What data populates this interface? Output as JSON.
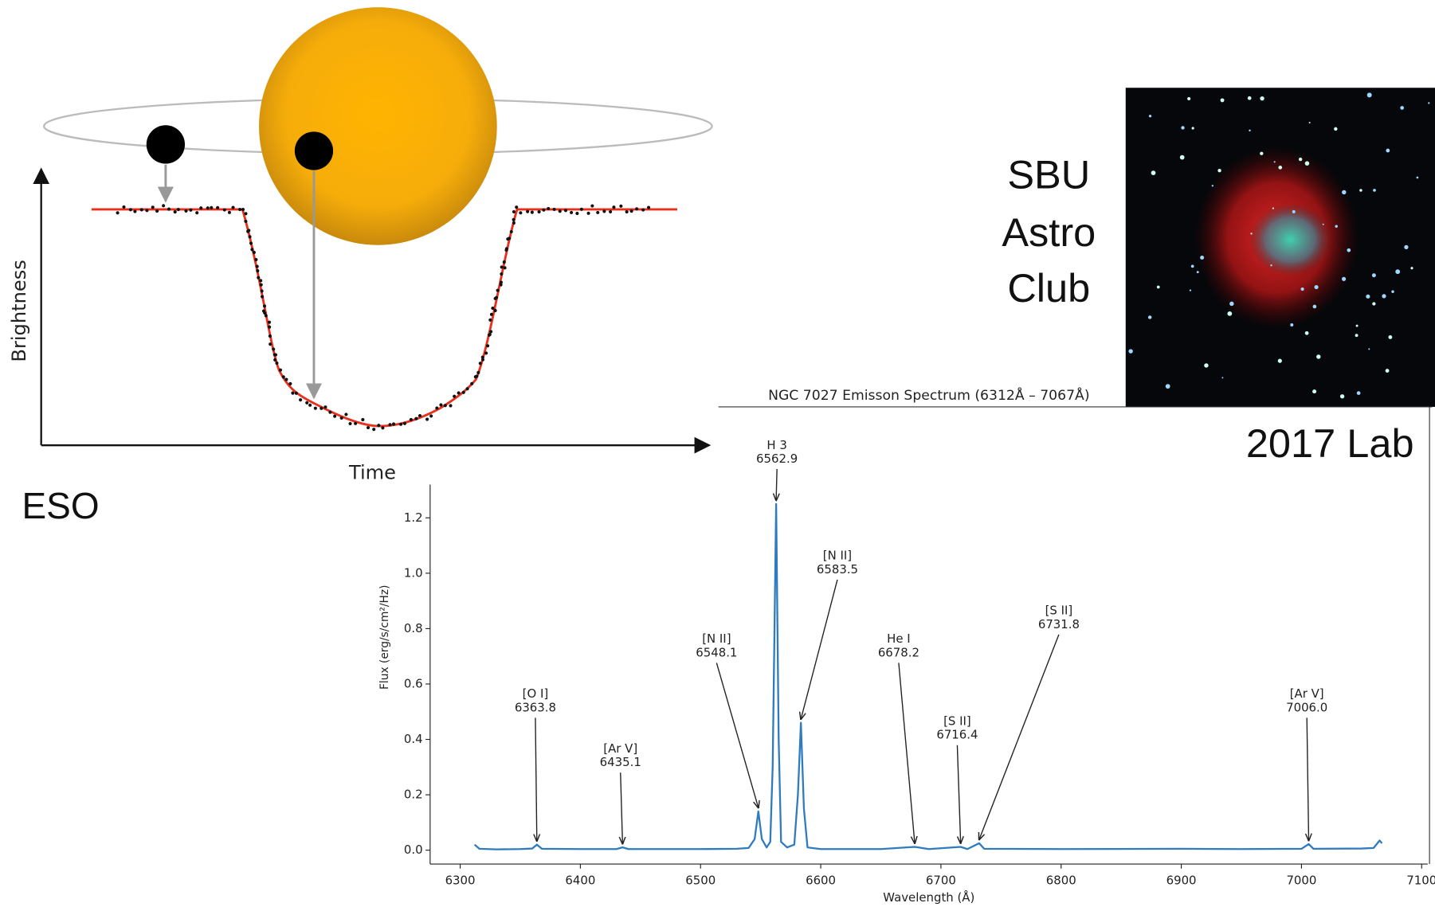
{
  "texts": {
    "source": "ESO",
    "club": [
      "SBU",
      "Astro",
      "Club"
    ],
    "year": "2017 Lab"
  },
  "chart_data": [
    {
      "type": "schematic",
      "xlabel": "Time",
      "ylabel": "Brightness"
    },
    {
      "type": "line",
      "title": "NGC 7027 Emisson Spectrum (6312Å – 7067Å)",
      "xlabel": "Wavelength (Å)",
      "ylabel": "Flux (erg/s/cm²/Hz)",
      "color": "#2f7bbf",
      "xlim": [
        6275,
        7105
      ],
      "xticks": [
        6300,
        6400,
        6500,
        6600,
        6700,
        6800,
        6900,
        7000,
        7100
      ],
      "ylim": [
        -0.05,
        1.32
      ],
      "yticks": [
        {
          "value": 0,
          "label": "0.0"
        },
        0.2,
        0.4,
        0.6,
        0.8,
        {
          "value": 1,
          "label": "1.0"
        },
        1.2
      ],
      "x": [
        6312,
        6316,
        6330,
        6350,
        6360,
        6363.8,
        6368,
        6400,
        6430,
        6435.1,
        6440,
        6500,
        6530,
        6540,
        6545,
        6548.1,
        6551,
        6555,
        6558,
        6560,
        6562.9,
        6565,
        6567,
        6572,
        6578,
        6581,
        6583.5,
        6586,
        6589,
        6600,
        6650,
        6678.2,
        6690,
        6716.4,
        6722,
        6731.8,
        6736,
        6800,
        6900,
        6950,
        7000,
        7006,
        7010,
        7050,
        7060,
        7065,
        7067
      ],
      "values": [
        0.02,
        0.005,
        0.003,
        0.004,
        0.006,
        0.02,
        0.005,
        0.004,
        0.004,
        0.01,
        0.004,
        0.004,
        0.005,
        0.008,
        0.04,
        0.14,
        0.04,
        0.01,
        0.03,
        0.3,
        1.25,
        0.4,
        0.03,
        0.01,
        0.02,
        0.2,
        0.46,
        0.15,
        0.01,
        0.004,
        0.004,
        0.012,
        0.004,
        0.012,
        0.004,
        0.025,
        0.005,
        0.004,
        0.005,
        0.004,
        0.005,
        0.022,
        0.005,
        0.006,
        0.008,
        0.035,
        0.025
      ],
      "annotations": [
        {
          "name": "[O I]",
          "value": 6363.8
        },
        {
          "name": "[Ar V]",
          "value": 6435.1
        },
        {
          "name": "[N II]",
          "value": 6548.1
        },
        {
          "name": "H 3",
          "value": 6562.9
        },
        {
          "name": "[N II]",
          "value": 6583.5
        },
        {
          "name": "He I",
          "value": 6678.2
        },
        {
          "name": "[S II]",
          "value": 6716.4
        },
        {
          "name": "[S II]",
          "value": 6731.8
        },
        {
          "name": "[Ar V]",
          "value": 7006,
          "value_label": "7006.0"
        }
      ]
    }
  ]
}
